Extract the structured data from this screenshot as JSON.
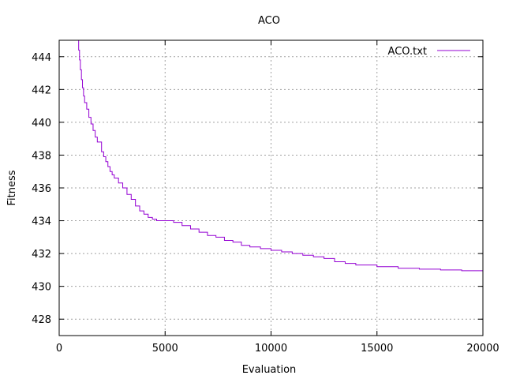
{
  "chart_data": {
    "type": "line",
    "title": "ACO",
    "xlabel": "Evaluation",
    "ylabel": "Fitness",
    "xlim": [
      0,
      20000
    ],
    "ylim": [
      427,
      445
    ],
    "x_ticks": [
      0,
      5000,
      10000,
      15000,
      20000
    ],
    "x_tick_labels": [
      "0",
      "5000",
      "10000",
      "15000",
      "20000"
    ],
    "y_ticks": [
      428,
      430,
      432,
      434,
      436,
      438,
      440,
      442,
      444
    ],
    "y_tick_labels": [
      "428",
      "430",
      "432",
      "434",
      "436",
      "438",
      "440",
      "442",
      "444"
    ],
    "grid": true,
    "legend_position": "top-right",
    "series": [
      {
        "name": "ACO.txt",
        "color": "#9400d3",
        "step": true,
        "x": [
          880,
          920,
          960,
          1000,
          1050,
          1100,
          1150,
          1200,
          1300,
          1400,
          1500,
          1600,
          1700,
          1800,
          2000,
          2100,
          2200,
          2300,
          2400,
          2500,
          2600,
          2800,
          3000,
          3200,
          3400,
          3600,
          3800,
          4000,
          4200,
          4400,
          4600,
          4800,
          5000,
          5400,
          5800,
          6200,
          6600,
          7000,
          7400,
          7800,
          8200,
          8600,
          9000,
          9500,
          10000,
          10500,
          11000,
          11500,
          12000,
          12500,
          13000,
          13500,
          14000,
          15000,
          16000,
          17000,
          18000,
          19000,
          20000
        ],
        "y": [
          445.0,
          444.4,
          443.8,
          443.2,
          442.6,
          442.1,
          441.6,
          441.2,
          440.8,
          440.3,
          439.9,
          439.5,
          439.1,
          438.8,
          438.2,
          437.9,
          437.6,
          437.3,
          437.0,
          436.8,
          436.6,
          436.3,
          436.0,
          435.6,
          435.3,
          434.9,
          434.6,
          434.4,
          434.2,
          434.1,
          434.0,
          434.0,
          434.0,
          433.9,
          433.7,
          433.5,
          433.3,
          433.1,
          433.0,
          432.8,
          432.7,
          432.5,
          432.4,
          432.3,
          432.2,
          432.1,
          432.0,
          431.9,
          431.8,
          431.7,
          431.5,
          431.4,
          431.3,
          431.2,
          431.1,
          431.05,
          431.0,
          430.95,
          430.9
        ]
      }
    ]
  }
}
